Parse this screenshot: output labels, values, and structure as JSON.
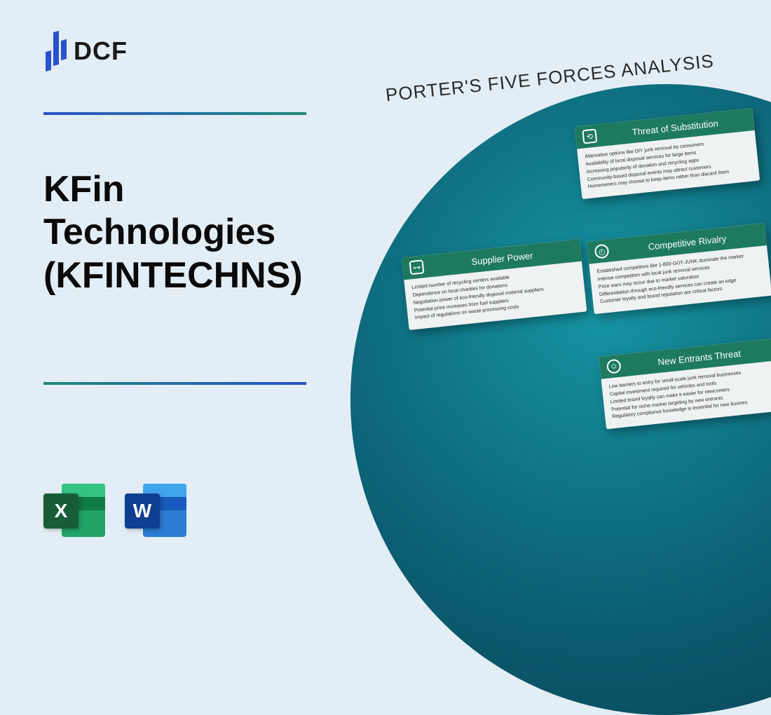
{
  "brand": {
    "logo_text": "DCF"
  },
  "company": {
    "title": "KFin\nTechnologies\n(KFINTECHNS)"
  },
  "file_icons": {
    "excel_letter": "X",
    "word_letter": "W"
  },
  "analysis": {
    "heading": "PORTER'S FIVE FORCES ANALYSIS",
    "colors": {
      "card_header_bg": "#1e7a5f",
      "card_body_bg": "#eef2f2",
      "circle_gradient": [
        "#1695a3",
        "#0c5f73",
        "#083d4d"
      ],
      "page_bg": "#e3edf5"
    },
    "cards": {
      "substitution": {
        "title": "Threat of Substitution",
        "items": [
          "Alternative options like DIY junk removal by consumers",
          "Availability of local disposal services for large items",
          "Increasing popularity of donation and recycling apps",
          "Community-based disposal events may attract customers",
          "Homeowners may choose to keep items rather than discard them"
        ]
      },
      "supplier": {
        "title": "Supplier Power",
        "items": [
          "Limited number of recycling centers available",
          "Dependence on local charities for donations",
          "Negotiation power of eco-friendly disposal material suppliers",
          "Potential price increases from fuel suppliers",
          "Impact of regulations on waste processing costs"
        ]
      },
      "rivalry": {
        "title": "Competitive Rivalry",
        "items": [
          "Established competitors like 1-800-GOT-JUNK dominate the market",
          "Intense competition with local junk removal services",
          "Price wars may occur due to market saturation",
          "Differentiation through eco-friendly services can create an edge",
          "Customer loyalty and brand reputation are critical factors"
        ]
      },
      "new_entrants": {
        "title": "New Entrants Threat",
        "items": [
          "Low barriers to entry for small-scale junk removal businesses",
          "Capital investment required for vehicles and tools",
          "Limited brand loyalty can make it easier for newcomers",
          "Potential for niche market targeting by new entrants",
          "Regulatory compliance knowledge is essential for new busines"
        ]
      }
    }
  }
}
